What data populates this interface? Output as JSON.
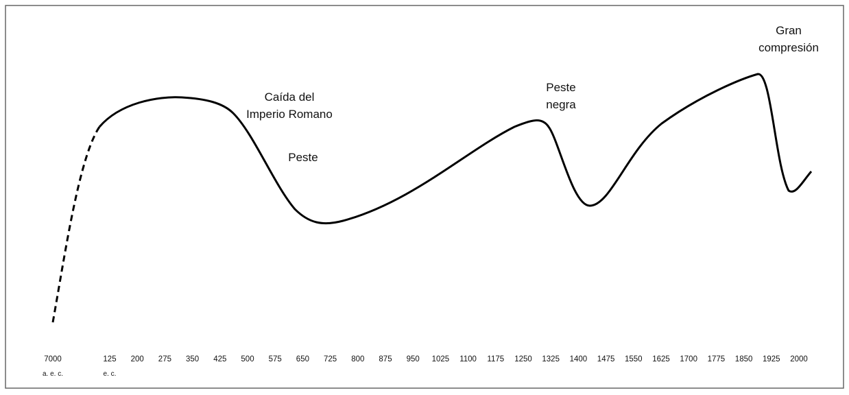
{
  "annotations": [
    {
      "lines": [
        "Caída del",
        "Imperio Romano"
      ]
    },
    {
      "lines": [
        "Peste"
      ]
    },
    {
      "lines": [
        "Peste",
        "negra"
      ]
    },
    {
      "lines": [
        "Gran",
        "compresión"
      ]
    }
  ],
  "x_labels": [
    {
      "text": "7000",
      "sub": "a. e. c."
    },
    {
      "text": "125",
      "sub": "e. c."
    },
    {
      "text": "200"
    },
    {
      "text": "275"
    },
    {
      "text": "350"
    },
    {
      "text": "425"
    },
    {
      "text": "500"
    },
    {
      "text": "575"
    },
    {
      "text": "650"
    },
    {
      "text": "725"
    },
    {
      "text": "800"
    },
    {
      "text": "875"
    },
    {
      "text": "950"
    },
    {
      "text": "1025"
    },
    {
      "text": "1100"
    },
    {
      "text": "1175"
    },
    {
      "text": "1250"
    },
    {
      "text": "1325"
    },
    {
      "text": "1400"
    },
    {
      "text": "1475"
    },
    {
      "text": "1550"
    },
    {
      "text": "1625"
    },
    {
      "text": "1700"
    },
    {
      "text": "1775"
    },
    {
      "text": "1850"
    },
    {
      "text": "1925"
    },
    {
      "text": "2000"
    }
  ]
}
